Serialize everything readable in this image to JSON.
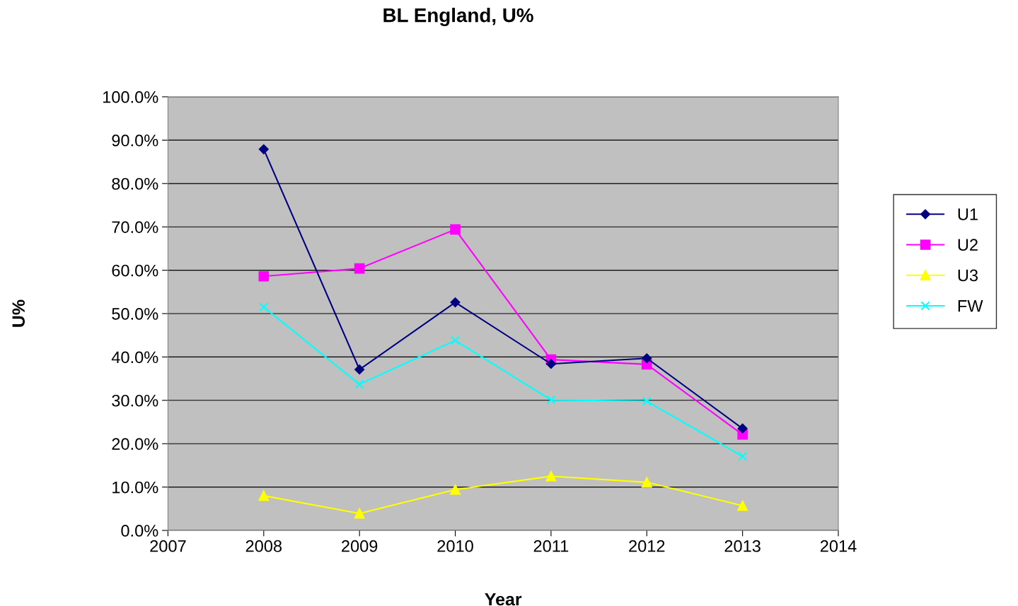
{
  "chart_data": {
    "type": "line",
    "title": "BL England, U%",
    "xlabel": "Year",
    "ylabel": "U%",
    "x": [
      2008,
      2009,
      2010,
      2011,
      2012,
      2013
    ],
    "series": [
      {
        "name": "U1",
        "color": "#000080",
        "marker": "diamond",
        "values": [
          87.9,
          37.1,
          52.6,
          38.4,
          39.7,
          23.5
        ]
      },
      {
        "name": "U2",
        "color": "#ff00ff",
        "marker": "square",
        "values": [
          58.6,
          60.4,
          69.4,
          39.4,
          38.3,
          22.1
        ]
      },
      {
        "name": "U3",
        "color": "#ffff00",
        "marker": "triangle",
        "values": [
          8.0,
          3.9,
          9.4,
          12.5,
          11.1,
          5.7
        ]
      },
      {
        "name": "FW",
        "color": "#00ffff",
        "marker": "cross",
        "values": [
          51.5,
          33.7,
          43.8,
          30.1,
          29.8,
          17.1
        ]
      }
    ],
    "xlim": [
      2007,
      2014
    ],
    "xticks": [
      2007,
      2008,
      2009,
      2010,
      2011,
      2012,
      2013,
      2014
    ],
    "ylim": [
      0,
      100
    ],
    "yticks": [
      {
        "value": 0,
        "label": "0.0%"
      },
      {
        "value": 10,
        "label": "10.0%"
      },
      {
        "value": 20,
        "label": "20.0%"
      },
      {
        "value": 30,
        "label": "30.0%"
      },
      {
        "value": 40,
        "label": "40.0%"
      },
      {
        "value": 50,
        "label": "50.0%"
      },
      {
        "value": 60,
        "label": "60.0%"
      },
      {
        "value": 70,
        "label": "70.0%"
      },
      {
        "value": 80,
        "label": "80.0%"
      },
      {
        "value": 90,
        "label": "90.0%"
      },
      {
        "value": 100,
        "label": "100.0%"
      }
    ],
    "grid": "y",
    "legend": "right",
    "line_style": "solid"
  }
}
